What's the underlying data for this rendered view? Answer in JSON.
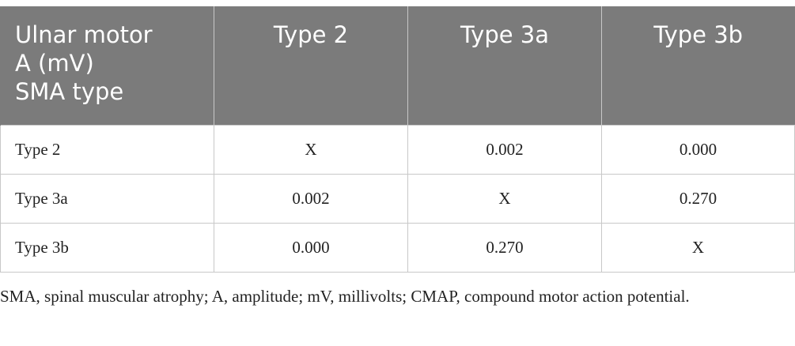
{
  "table": {
    "header": [
      "Ulnar motor\nA (mV)\nSMA type",
      "Type 2",
      "Type 3a",
      "Type 3b"
    ],
    "rows": [
      [
        "Type 2",
        "X",
        "0.002",
        "0.000"
      ],
      [
        "Type 3a",
        "0.002",
        "X",
        "0.270"
      ],
      [
        "Type 3b",
        "0.000",
        "0.270",
        "X"
      ]
    ]
  },
  "footnote": "SMA, spinal muscular atrophy; A, amplitude; mV, millivolts; CMAP, compound motor action potential."
}
